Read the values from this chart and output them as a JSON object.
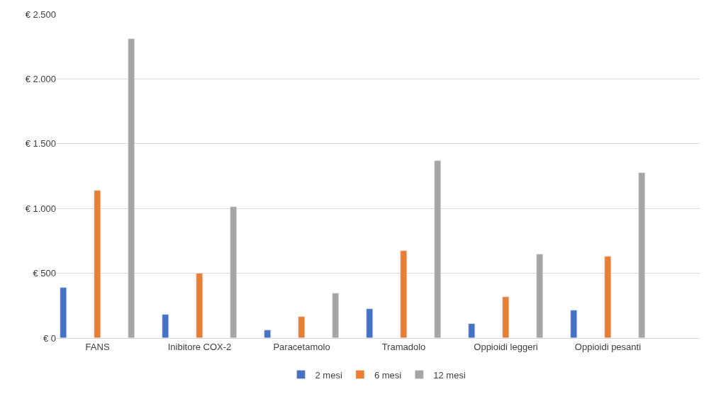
{
  "chart_data": {
    "type": "bar",
    "categories": [
      "FANS",
      "Inibitore COX-2",
      "Paracetamolo",
      "Tramadolo",
      "Oppioidi leggeri",
      "Oppioidi pesanti"
    ],
    "series": [
      {
        "name": "2 mesi",
        "color": "#4472c4",
        "values": [
          390,
          180,
          60,
          225,
          110,
          215
        ]
      },
      {
        "name": "6 mesi",
        "color": "#ed7d31",
        "values": [
          1140,
          500,
          165,
          675,
          320,
          630
        ]
      },
      {
        "name": "12 mesi",
        "color": "#a5a5a5",
        "values": [
          2310,
          1010,
          345,
          1365,
          645,
          1275
        ]
      }
    ],
    "ylim": [
      0,
      2500
    ],
    "yticks": [
      {
        "value": 0,
        "label": "€ 0"
      },
      {
        "value": 500,
        "label": "€ 500"
      },
      {
        "value": 1000,
        "label": "€ 1.000"
      },
      {
        "value": 1500,
        "label": "€ 1.500"
      },
      {
        "value": 2000,
        "label": "€ 2.000"
      },
      {
        "value": 2500,
        "label": "€ 2.500"
      }
    ],
    "grid": "y",
    "legend": "bottom"
  }
}
